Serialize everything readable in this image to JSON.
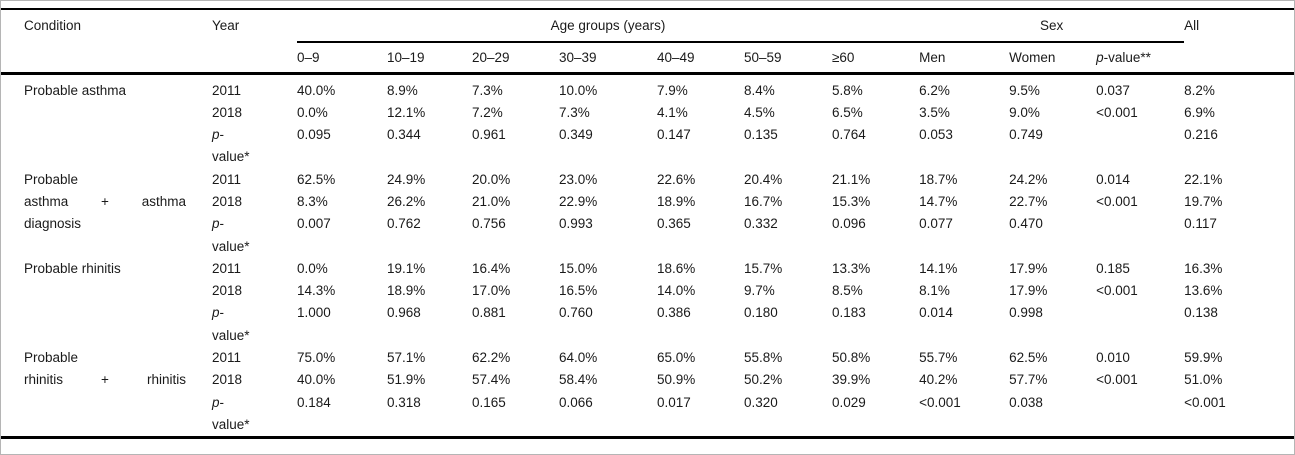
{
  "colors": {
    "background": "#ffffff",
    "frame_border": "#b5b5b5",
    "rule": "#000000",
    "text": "#1a1a1a"
  },
  "table": {
    "header": {
      "condition": "Condition",
      "year": "Year",
      "age_groups": "Age groups (years)",
      "sex": "Sex",
      "all": "All",
      "age_cols": [
        "0–9",
        "10–19",
        "20–29",
        "30–39",
        "40–49",
        "50–59",
        "≥60"
      ],
      "sex_cols": [
        "Men",
        "Women",
        "p-value**"
      ]
    },
    "sections": [
      {
        "condition": "Probable asthma",
        "condition_lines": [
          "Probable asthma"
        ],
        "rows": [
          {
            "year": "2011",
            "values": [
              "40.0%",
              "8.9%",
              "7.3%",
              "10.0%",
              "7.9%",
              "8.4%",
              "5.8%",
              "6.2%",
              "9.5%",
              "0.037",
              "8.2%"
            ]
          },
          {
            "year": "2018",
            "values": [
              "0.0%",
              "12.1%",
              "7.2%",
              "7.3%",
              "4.1%",
              "4.5%",
              "6.5%",
              "3.5%",
              "9.0%",
              "<0.001",
              "6.9%"
            ]
          },
          {
            "year": "p-value*",
            "values": [
              "0.095",
              "0.344",
              "0.961",
              "0.349",
              "0.147",
              "0.135",
              "0.764",
              "0.053",
              "0.749",
              "",
              "0.216"
            ]
          }
        ]
      },
      {
        "condition": "Probable asthma + asthma diagnosis",
        "condition_lines": [
          "Probable",
          "asthma + asthma",
          "diagnosis"
        ],
        "rows": [
          {
            "year": "2011",
            "values": [
              "62.5%",
              "24.9%",
              "20.0%",
              "23.0%",
              "22.6%",
              "20.4%",
              "21.1%",
              "18.7%",
              "24.2%",
              "0.014",
              "22.1%"
            ]
          },
          {
            "year": "2018",
            "values": [
              "8.3%",
              "26.2%",
              "21.0%",
              "22.9%",
              "18.9%",
              "16.7%",
              "15.3%",
              "14.7%",
              "22.7%",
              "<0.001",
              "19.7%"
            ]
          },
          {
            "year": "p-value*",
            "values": [
              "0.007",
              "0.762",
              "0.756",
              "0.993",
              "0.365",
              "0.332",
              "0.096",
              "0.077",
              "0.470",
              "",
              "0.117"
            ]
          }
        ]
      },
      {
        "condition": "Probable rhinitis",
        "condition_lines": [
          "Probable rhinitis"
        ],
        "rows": [
          {
            "year": "2011",
            "values": [
              "0.0%",
              "19.1%",
              "16.4%",
              "15.0%",
              "18.6%",
              "15.7%",
              "13.3%",
              "14.1%",
              "17.9%",
              "0.185",
              "16.3%"
            ]
          },
          {
            "year": "2018",
            "values": [
              "14.3%",
              "18.9%",
              "17.0%",
              "16.5%",
              "14.0%",
              "9.7%",
              "8.5%",
              "8.1%",
              "17.9%",
              "<0.001",
              "13.6%"
            ]
          },
          {
            "year": "p-value*",
            "values": [
              "1.000",
              "0.968",
              "0.881",
              "0.760",
              "0.386",
              "0.180",
              "0.183",
              "0.014",
              "0.998",
              "",
              "0.138"
            ]
          }
        ]
      },
      {
        "condition": "Probable rhinitis + rhinitis",
        "condition_lines": [
          "Probable",
          "rhinitis + rhinitis"
        ],
        "rows": [
          {
            "year": "2011",
            "values": [
              "75.0%",
              "57.1%",
              "62.2%",
              "64.0%",
              "65.0%",
              "55.8%",
              "50.8%",
              "55.7%",
              "62.5%",
              "0.010",
              "59.9%"
            ]
          },
          {
            "year": "2018",
            "values": [
              "40.0%",
              "51.9%",
              "57.4%",
              "58.4%",
              "50.9%",
              "50.2%",
              "39.9%",
              "40.2%",
              "57.7%",
              "<0.001",
              "51.0%"
            ]
          },
          {
            "year": "p-value*",
            "values": [
              "0.184",
              "0.318",
              "0.165",
              "0.066",
              "0.017",
              "0.320",
              "0.029",
              "<0.001",
              "0.038",
              "",
              "<0.001"
            ]
          }
        ]
      }
    ]
  }
}
